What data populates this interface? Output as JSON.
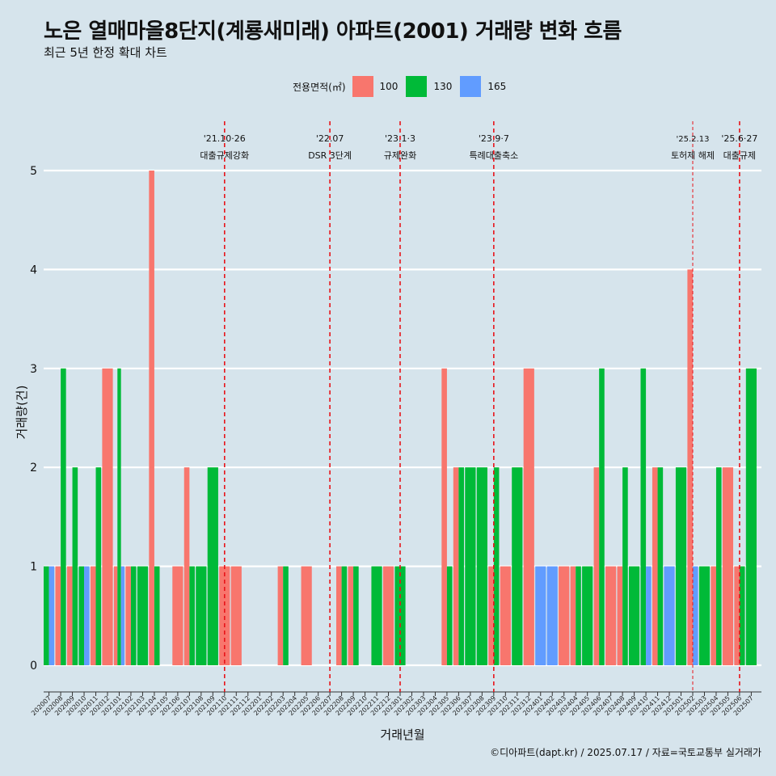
{
  "title": "노은 열매마을8단지(계룡새미래) 아파트(2001) 거래량 변화 흐름",
  "subtitle": "최근 5년 한정 확대 차트",
  "caption": "©디아파트(dapt.kr) / 2025.07.17 / 자료=국토교통부 실거래가",
  "chart_data": {
    "type": "bar",
    "xlabel": "거래년월",
    "ylabel": "거래량(건)",
    "ylim": [
      -0.2,
      5.3
    ],
    "yticks": [
      0,
      1,
      2,
      3,
      4,
      5
    ],
    "grid": "horizontal",
    "legend": {
      "title": "전용면적(㎡)",
      "position": "top",
      "items": [
        {
          "name": "100",
          "color": "#f8766d"
        },
        {
          "name": "130",
          "color": "#00ba38"
        },
        {
          "name": "165",
          "color": "#619cff"
        }
      ]
    },
    "categories": [
      "202007",
      "202008",
      "202009",
      "202010",
      "202011",
      "202012",
      "202101",
      "202102",
      "202103",
      "202104",
      "202105",
      "202106",
      "202107",
      "202108",
      "202109",
      "202110",
      "202111",
      "202112",
      "202201",
      "202202",
      "202203",
      "202204",
      "202205",
      "202206",
      "202207",
      "202208",
      "202209",
      "202210",
      "202211",
      "202212",
      "202301",
      "202302",
      "202303",
      "202304",
      "202305",
      "202306",
      "202307",
      "202308",
      "202309",
      "202310",
      "202311",
      "202312",
      "202401",
      "202402",
      "202403",
      "202404",
      "202405",
      "202406",
      "202407",
      "202408",
      "202409",
      "202410",
      "202411",
      "202412",
      "202501",
      "202502",
      "202503",
      "202504",
      "202505",
      "202506",
      "202507"
    ],
    "series": [
      {
        "name": "100",
        "color": "#f8766d",
        "values": [
          0,
          1,
          1,
          0,
          1,
          3,
          1,
          1,
          0,
          5,
          0,
          1,
          2,
          0,
          0,
          1,
          1,
          0,
          0,
          0,
          1,
          0,
          1,
          0,
          0,
          1,
          1,
          0,
          0,
          1,
          0,
          0,
          0,
          0,
          3,
          2,
          0,
          0,
          1,
          1,
          0,
          3,
          0,
          0,
          1,
          1,
          0,
          2,
          1,
          1,
          0,
          0,
          2,
          0,
          0,
          4,
          0,
          1,
          2,
          1,
          0
        ]
      },
      {
        "name": "130",
        "color": "#00ba38",
        "values": [
          1,
          3,
          2,
          1,
          2,
          0,
          3,
          1,
          1,
          1,
          0,
          0,
          1,
          1,
          2,
          0,
          0,
          0,
          0,
          0,
          1,
          0,
          0,
          0,
          0,
          1,
          1,
          0,
          1,
          0,
          1,
          0,
          0,
          0,
          1,
          2,
          2,
          2,
          2,
          0,
          2,
          0,
          0,
          0,
          0,
          1,
          1,
          3,
          0,
          2,
          1,
          3,
          2,
          0,
          2,
          0,
          1,
          2,
          0,
          1,
          3
        ]
      },
      {
        "name": "165",
        "color": "#619cff",
        "values": [
          1,
          0,
          0,
          1,
          0,
          0,
          1,
          0,
          0,
          0,
          0,
          0,
          0,
          0,
          0,
          0,
          0,
          0,
          0,
          0,
          0,
          0,
          0,
          0,
          0,
          0,
          0,
          0,
          0,
          0,
          0,
          0,
          0,
          0,
          0,
          0,
          0,
          0,
          0,
          0,
          0,
          0,
          1,
          1,
          0,
          0,
          0,
          0,
          0,
          0,
          0,
          1,
          0,
          1,
          0,
          1,
          0,
          0,
          0,
          0,
          0
        ]
      }
    ],
    "annotations": [
      {
        "x": "202110",
        "date": "'21.10·26",
        "label": "대출규제강화",
        "style": "dashed"
      },
      {
        "x": "202207",
        "date": "'22.07",
        "label": "DSR 3단계",
        "style": "dashed"
      },
      {
        "x": "202301",
        "date": "'23.1·3",
        "label": "규제완화",
        "style": "dashed"
      },
      {
        "x": "202309",
        "date": "'23.9·7",
        "label": "특례대출축소",
        "style": "dashed"
      },
      {
        "x": "202502",
        "date": "'25.2.13",
        "label": "토허제 해제",
        "style": "thin-dashed"
      },
      {
        "x": "202506",
        "date": "'25.6·27",
        "label": "대출규제",
        "style": "dashed"
      }
    ]
  }
}
